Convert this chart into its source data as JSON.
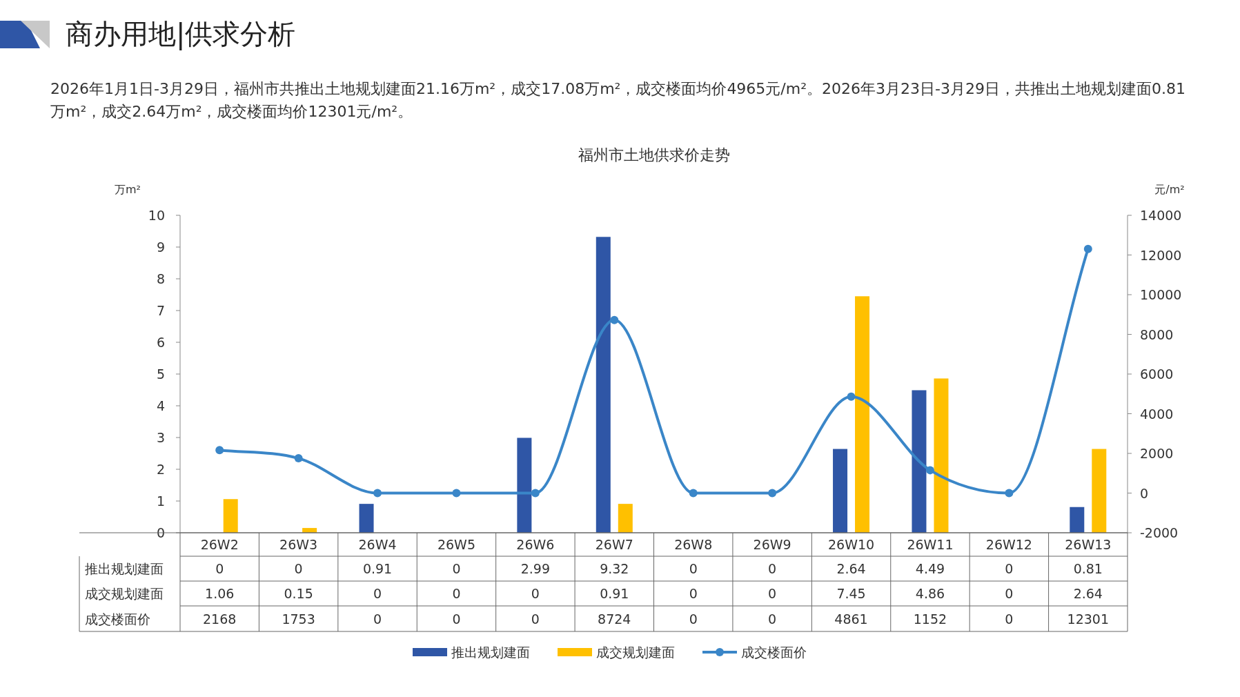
{
  "chart_data": {
    "type": "bar",
    "title": "福州市土地供求价走势",
    "annotations": [
      "商办用地|供求分析",
      "2026年1月1日-3月29日，福州市共推出土地规划建面21.16万m²，成交17.08万m²，成交楼面均价4965元/m²。2026年3月23日-3月29日，共推出土地规划建面0.81万m²，成交2.64万m²，成交楼面均价12301元/m²。"
    ],
    "ylabel": "万m²",
    "y2label": "元/m²",
    "categories": [
      "26W2",
      "26W3",
      "26W4",
      "26W5",
      "26W6",
      "26W7",
      "26W8",
      "26W9",
      "26W10",
      "26W11",
      "26W12",
      "26W13"
    ],
    "series": [
      {
        "name": "推出规划建面",
        "color": "#2f56a6",
        "values": [
          0,
          0,
          0.91,
          0,
          2.99,
          9.32,
          0,
          0,
          2.64,
          4.49,
          0,
          0.81
        ]
      },
      {
        "name": "成交规划建面",
        "color": "#ffc000",
        "values": [
          1.06,
          0.15,
          0,
          0,
          0,
          0.91,
          0,
          0,
          7.45,
          4.86,
          0,
          2.64
        ]
      },
      {
        "name": "成交楼面价",
        "type": "line",
        "axis": "y2",
        "color": "#3a86c8",
        "values": [
          2168,
          1753,
          0,
          0,
          0,
          8724,
          0,
          0,
          4861,
          1152,
          0,
          12301
        ]
      }
    ],
    "ylim": [
      0,
      10
    ],
    "yticks": [
      0,
      1,
      2,
      3,
      4,
      5,
      6,
      7,
      8,
      9,
      10
    ],
    "y2lim": [
      -2000,
      14000
    ],
    "y2ticks": [
      -2000,
      0,
      2000,
      4000,
      6000,
      8000,
      10000,
      12000,
      14000
    ],
    "marker": "circle",
    "data_labels": true,
    "legend": "bottom"
  }
}
